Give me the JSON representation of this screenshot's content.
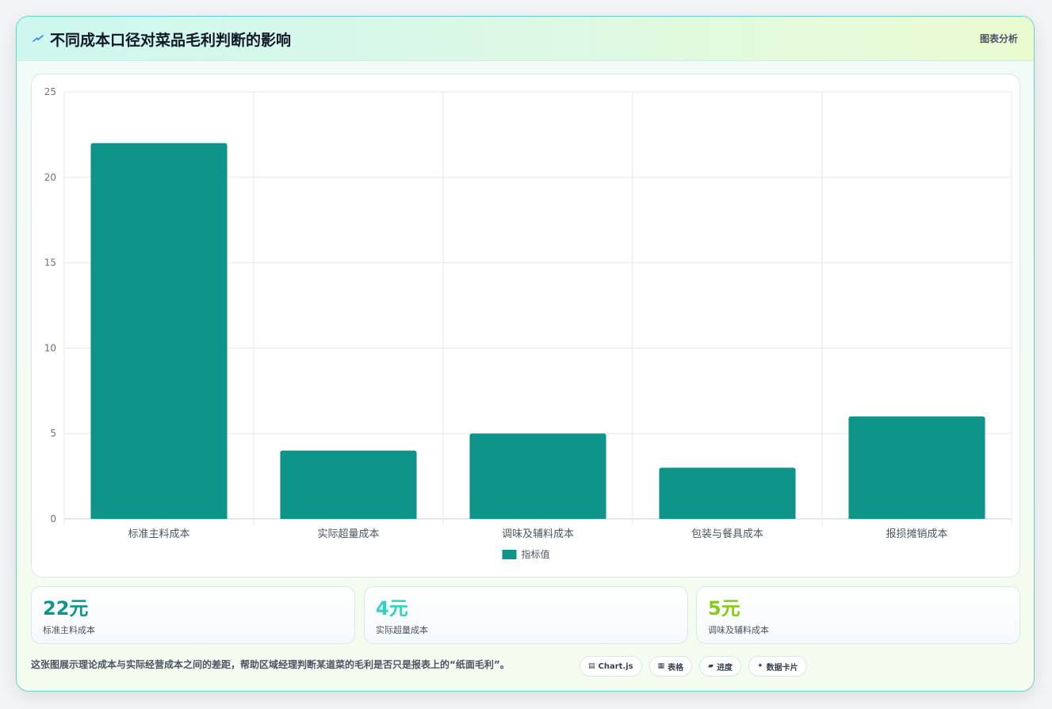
{
  "header": {
    "title": "不同成本口径对菜品毛利判断的影响",
    "tag": "图表分析",
    "icon": "lightning-icon"
  },
  "chart_data": {
    "type": "bar",
    "categories": [
      "标准主料成本",
      "实际超量成本",
      "调味及辅料成本",
      "包装与餐具成本",
      "报损摊销成本"
    ],
    "series": [
      {
        "name": "指标值",
        "values": [
          22,
          4,
          5,
          3,
          6
        ],
        "color": "#0e9488"
      }
    ],
    "ylim": [
      0,
      25
    ],
    "yticks": [
      0,
      5,
      10,
      15,
      20,
      25
    ],
    "grid": true,
    "legend_position": "bottom"
  },
  "kpis": [
    {
      "value": "22元",
      "label": "标准主料成本",
      "color": "#0e9488"
    },
    {
      "value": "4元",
      "label": "实际超量成本",
      "color": "#2dd4bf"
    },
    {
      "value": "5元",
      "label": "调味及辅料成本",
      "color": "#84cc16"
    }
  ],
  "footer": {
    "note": "这张图展示理论成本与实际经营成本之间的差距，帮助区域经理判断某道菜的毛利是否只是报表上的“纸面毛利”。",
    "chips": [
      {
        "icon": "chart-icon",
        "glyph": "▤",
        "label": "Chart.js"
      },
      {
        "icon": "table-icon",
        "glyph": "▦",
        "label": "表格"
      },
      {
        "icon": "progress-icon",
        "glyph": "▰",
        "label": "进度"
      },
      {
        "icon": "sparkle-icon",
        "glyph": "✦",
        "label": "数据卡片"
      }
    ]
  }
}
